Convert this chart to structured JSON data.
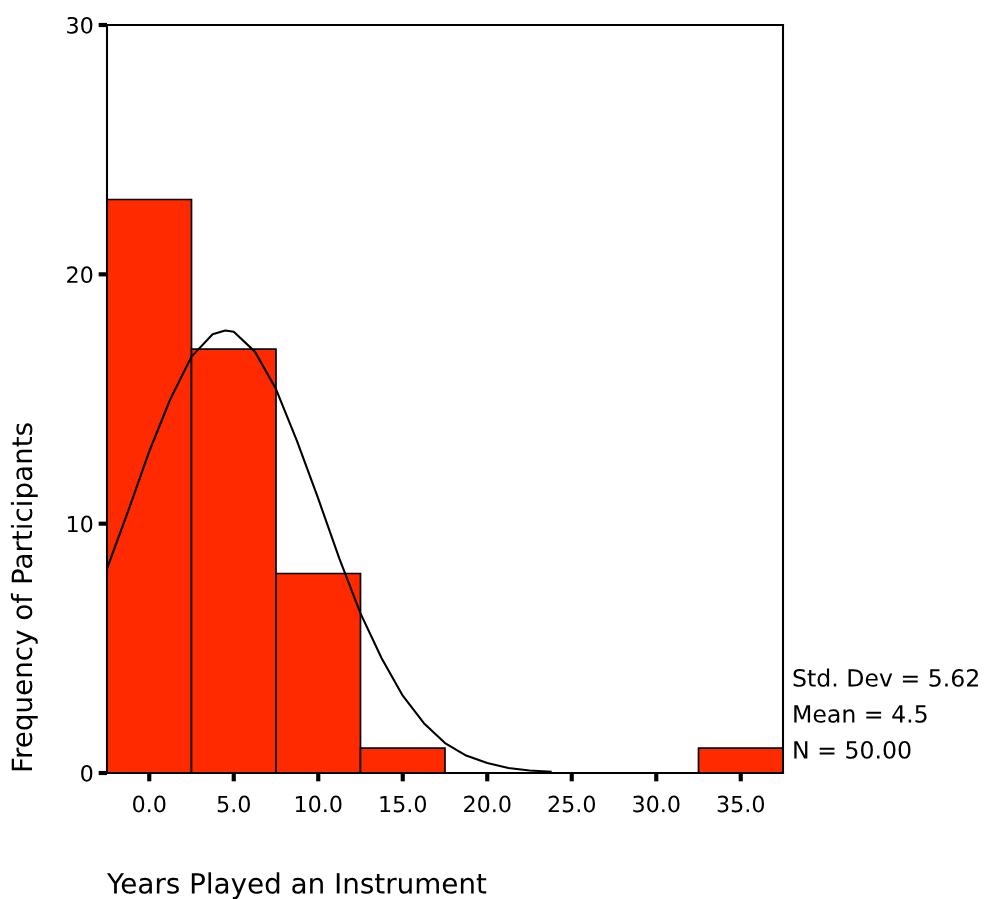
{
  "chart_data": {
    "type": "histogram",
    "xlabel": "Years Played an Instrument",
    "ylabel": "Frequency of Participants",
    "bins": [
      -2.5,
      2.5,
      7.5,
      12.5,
      17.5,
      22.5,
      27.5,
      32.5,
      37.5
    ],
    "values": [
      23,
      17,
      8,
      1,
      0,
      0,
      0,
      1
    ],
    "color": "#ff2a00",
    "series": [
      {
        "type": "line",
        "color": "#000000",
        "x": [
          -2.5,
          -1.25,
          0,
          1.25,
          2.5,
          3.75,
          4.5,
          5,
          6.25,
          7.5,
          8.75,
          10,
          11.25,
          12.5,
          13.75,
          15,
          16.25,
          17.5,
          18.75,
          20,
          21.25,
          22.5,
          23.75
        ],
        "values": [
          8.2,
          10.5,
          12.9,
          15.0,
          16.7,
          17.6,
          17.75,
          17.7,
          16.9,
          15.4,
          13.3,
          11.0,
          8.6,
          6.4,
          4.6,
          3.1,
          2.0,
          1.2,
          0.7,
          0.4,
          0.2,
          0.1,
          0.05
        ]
      }
    ],
    "xlim": [
      -2.5,
      37.5
    ],
    "xticks": [
      {
        "value": 0,
        "label": "0.0"
      },
      {
        "value": 5,
        "label": "5.0"
      },
      {
        "value": 10,
        "label": "10.0"
      },
      {
        "value": 15,
        "label": "15.0"
      },
      {
        "value": 20,
        "label": "20.0"
      },
      {
        "value": 25,
        "label": "25.0"
      },
      {
        "value": 30,
        "label": "30.0"
      },
      {
        "value": 35,
        "label": "35.0"
      }
    ],
    "ylim": [
      0,
      30
    ],
    "yticks": [
      0,
      10,
      20,
      30
    ],
    "annotations": [
      "Std. Dev = 5.62",
      "Mean = 4.5",
      "N = 50.00"
    ],
    "grid": false,
    "legend": false,
    "marker": "none",
    "line_style": "solid"
  }
}
